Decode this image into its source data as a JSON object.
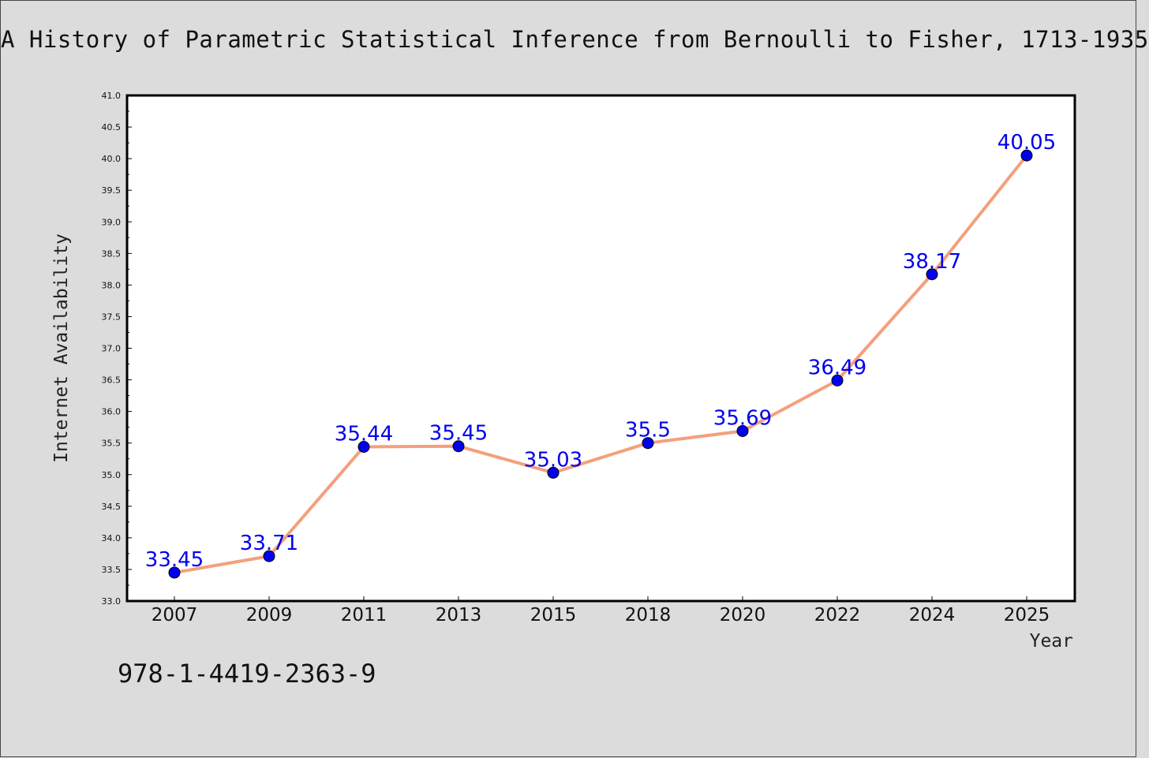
{
  "chart_data": {
    "type": "line",
    "title": "A History of Parametric Statistical Inference from Bernoulli to Fisher, 1713-1935",
    "xlabel": "Year",
    "ylabel": "Internet Availability",
    "categories": [
      "2007",
      "2009",
      "2011",
      "2013",
      "2015",
      "2018",
      "2020",
      "2022",
      "2024",
      "2025"
    ],
    "series": [
      {
        "values": [
          33.45,
          33.71,
          35.44,
          35.45,
          35.03,
          35.5,
          35.69,
          36.49,
          38.17,
          40.05
        ],
        "labels": [
          "33.45",
          "33.71",
          "35.44",
          "35.45",
          "35.03",
          "35.5",
          "35.69",
          "36.49",
          "38.17",
          "40.05"
        ]
      }
    ],
    "ylim": [
      33.0,
      41.0
    ],
    "yticks": [
      "33.0",
      "33.5",
      "34.0",
      "34.5",
      "35.0",
      "35.5",
      "36.0",
      "36.5",
      "37.0",
      "37.5",
      "38.0",
      "38.5",
      "39.0",
      "39.5",
      "40.0",
      "40.5",
      "41.0"
    ],
    "grid": false,
    "legend": "none",
    "colors": {
      "line": "#f4a07c",
      "marker": "#0000ee",
      "label": "#0000ee",
      "background": "#dcdcdc",
      "plot_background": "#ffffff"
    }
  },
  "footer": {
    "isbn": "978-1-4419-2363-9"
  }
}
